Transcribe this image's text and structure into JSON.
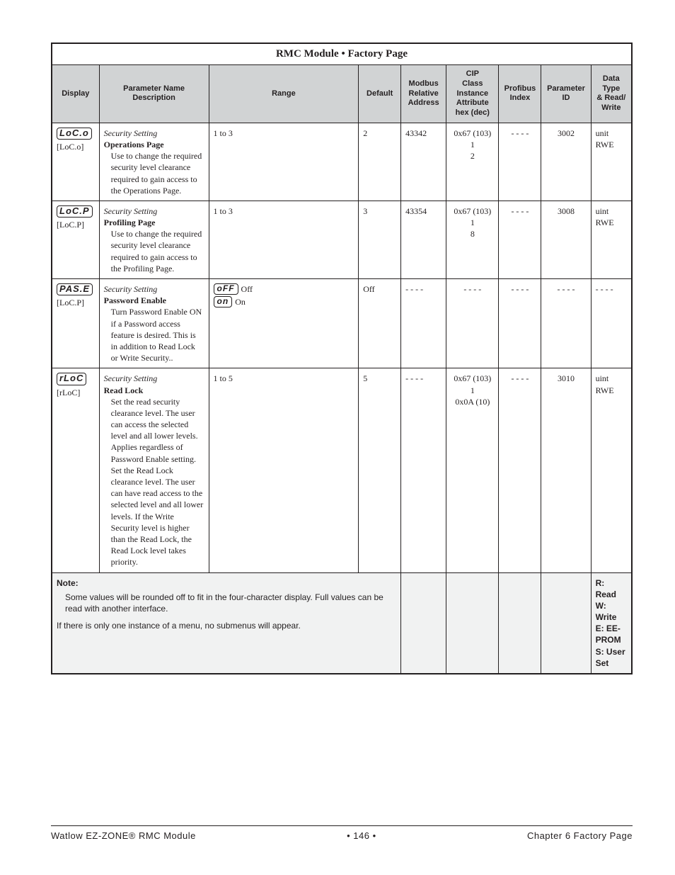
{
  "table": {
    "title": "RMC Module   •   Factory Page",
    "headers": {
      "display": "Display",
      "paramName": "Parameter Name\nDescription",
      "range": "Range",
      "default": "Default",
      "modbus": "Modbus\nRelative\nAddress",
      "cip": "CIP\nClass\nInstance\nAttribute\nhex (dec)",
      "profibus": "Profibus\nIndex",
      "paramId": "Parameter\nID",
      "dataType": "Data\nType\n& Read/\nWrite"
    },
    "rows": [
      {
        "seg": "LoC.o",
        "bracket": "[LoC.o]",
        "heading": "Security Setting",
        "bold": "Operations Page",
        "body": "Use to change the required security level clearance required to gain access to the Op­erations Page.",
        "range_plain": "1 to 3",
        "range_opts": null,
        "default": "2",
        "modbus": "43342",
        "cip": "0x67 (103)\n1\n2",
        "profibus": "- - - -",
        "paramId": "3002",
        "dataType": "unit\nRWE"
      },
      {
        "seg": "LoC.P",
        "bracket": "[LoC.P]",
        "heading": "Security Setting",
        "bold": "Profiling Page",
        "body": "Use to change the required security level clearance required to gain access to the Pro­filing Page.",
        "range_plain": "1 to 3",
        "range_opts": null,
        "default": "3",
        "modbus": "43354",
        "cip": "0x67 (103)\n1\n8",
        "profibus": "- - - -",
        "paramId": "3008",
        "dataType": "uint\nRWE"
      },
      {
        "seg": "PAS.E",
        "bracket": "[LoC.P]",
        "heading": "Security Setting",
        "bold": "Password Enable",
        "body": "Turn Password En­able ON if a Password access feature is desired. This is in ad­dition to Read Lock or Write Security..",
        "range_plain": null,
        "range_opts": [
          {
            "seg": "oFF",
            "label": "Off"
          },
          {
            "seg": "on",
            "label": "On"
          }
        ],
        "default": "Off",
        "modbus": "- - - -",
        "cip": "- - - -",
        "profibus": "- - - -",
        "paramId": "- - - -",
        "dataType": "- - - -"
      },
      {
        "seg": "rLoC",
        "bracket": "[rLoC]",
        "heading": "Security Setting",
        "bold": "Read Lock",
        "body": "Set the read security clearance level. The user can access the selected level and all lower levels.\nApplies regardless of Password Enable set­ting. Set the Read Lock clearance level. The user can have read access to the selected level and all lower levels. If the Write Security level is higher than the Read Lock, the Read Lock level takes priority.",
        "range_plain": "1 to 5",
        "range_opts": null,
        "default": "5",
        "modbus": "- - - -",
        "cip": "0x67 (103)\n1\n0x0A (10)",
        "profibus": "- - - -",
        "paramId": "3010",
        "dataType": "uint\nRWE"
      }
    ],
    "note": {
      "label": "Note:",
      "line1": "Some values will be rounded off to fit in the four-character display. Full values can be read with another interface.",
      "line2": "If there is only one instance of a menu, no submenus will appear."
    },
    "legend": "R: Read\nW: Write\nE: EE-PROM\nS: User Set"
  },
  "footer": {
    "left": "Watlow EZ-ZONE® RMC Module",
    "center": "•   146   •",
    "right": "Chapter 6 Factory Page"
  }
}
